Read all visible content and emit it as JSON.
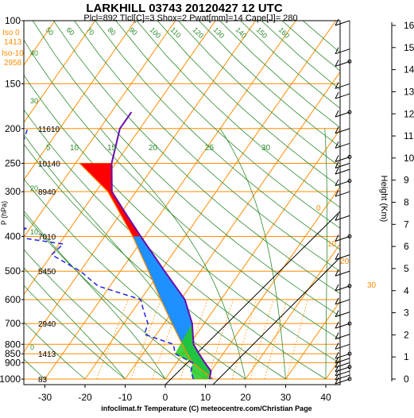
{
  "chart_data": {
    "type": "skew-t sounding",
    "title": "LARKHILL 03743 20120427 12 UTC",
    "subtitle": "Plcl=892 Tlcl[C]=3 Shox=2 Pwat[mm]=14 Cape[J]= 280",
    "ylabel": "P (hPa)",
    "y2label": "Height (Km)",
    "footer": "infoclimat.fr Temperature (C) meteocentre.com/Christian Page",
    "pressure_ticks": [
      100,
      150,
      200,
      250,
      300,
      400,
      500,
      600,
      700,
      800,
      850,
      900,
      1000
    ],
    "temperature_ticks": [
      -30,
      -20,
      -10,
      0,
      10,
      20,
      30,
      40
    ],
    "height_ticks_km": [
      0,
      1,
      2,
      3,
      4,
      5,
      6,
      7,
      8,
      9,
      10,
      11,
      12,
      13,
      14,
      15,
      16
    ],
    "iso_labels": [
      {
        "label": "Iso 0",
        "value": "1413"
      },
      {
        "label": "Iso-10",
        "value": "2958"
      }
    ],
    "height_labels_m": [
      {
        "p": 200,
        "text": "11610"
      },
      {
        "p": 250,
        "text": "10140"
      },
      {
        "p": 300,
        "text": "8940"
      },
      {
        "p": 400,
        "text": "7010"
      },
      {
        "p": 500,
        "text": "5450"
      },
      {
        "p": 700,
        "text": "2940"
      },
      {
        "p": 850,
        "text": "1413"
      },
      {
        "p": 1000,
        "text": "83"
      }
    ],
    "humidity_labels": [
      "50",
      "60",
      "70",
      "80",
      "90",
      "100",
      "110",
      "120",
      "130",
      "140",
      "150",
      "160"
    ],
    "mixing_ratio_labels": [
      "5",
      "10",
      "15",
      "20",
      "25",
      "30"
    ],
    "theta_labels": [
      "40",
      "30",
      "20",
      "10",
      "0"
    ],
    "wet_bulb_labels": [
      "0",
      "10",
      "20",
      "30"
    ],
    "colors": {
      "temperature": "#2222cc",
      "dewpoint": "#2222dd",
      "cape_area": "#ff0000",
      "cin_area": "#1e90ff",
      "green_area": "#22cc22",
      "isobars": "#ff8c00",
      "isotherms": "#ff8c00",
      "dry_adiabats": "#2e8b2e",
      "moist_adiabats": "#2e8b2e",
      "mixing_ratio": "#ff8c00"
    },
    "temperature_profile": [
      {
        "p": 1000,
        "t": 11
      },
      {
        "p": 950,
        "t": 10
      },
      {
        "p": 900,
        "t": 7
      },
      {
        "p": 850,
        "t": 4
      },
      {
        "p": 800,
        "t": 1
      },
      {
        "p": 700,
        "t": -3
      },
      {
        "p": 600,
        "t": -9
      },
      {
        "p": 500,
        "t": -19
      },
      {
        "p": 400,
        "t": -31
      },
      {
        "p": 350,
        "t": -38
      },
      {
        "p": 300,
        "t": -46
      },
      {
        "p": 250,
        "t": -51
      },
      {
        "p": 200,
        "t": -55
      },
      {
        "p": 180,
        "t": -55
      }
    ],
    "dewpoint_profile": [
      {
        "p": 1000,
        "td": 7
      },
      {
        "p": 950,
        "td": 5
      },
      {
        "p": 900,
        "td": 4
      },
      {
        "p": 850,
        "td": -2
      },
      {
        "p": 800,
        "td": -4
      },
      {
        "p": 750,
        "td": -13
      },
      {
        "p": 700,
        "td": -14
      },
      {
        "p": 650,
        "td": -17
      },
      {
        "p": 600,
        "td": -20
      },
      {
        "p": 550,
        "td": -33
      },
      {
        "p": 500,
        "td": -40
      },
      {
        "p": 450,
        "td": -50
      },
      {
        "p": 420,
        "td": -49
      },
      {
        "p": 400,
        "td": -63
      },
      {
        "p": 380,
        "td": -61
      },
      {
        "p": 350,
        "td": -70
      },
      {
        "p": 300,
        "td": -72
      },
      {
        "p": 250,
        "td": -75
      },
      {
        "p": 200,
        "td": -78
      }
    ],
    "parcel_profile": [
      {
        "p": 1000,
        "t": 12
      },
      {
        "p": 950,
        "t": 8
      },
      {
        "p": 900,
        "t": 4
      },
      {
        "p": 850,
        "t": 1
      },
      {
        "p": 700,
        "t": -8
      },
      {
        "p": 600,
        "t": -15
      },
      {
        "p": 500,
        "t": -23
      },
      {
        "p": 400,
        "t": -33
      },
      {
        "p": 300,
        "t": -47
      },
      {
        "p": 250,
        "t": -59
      }
    ]
  }
}
